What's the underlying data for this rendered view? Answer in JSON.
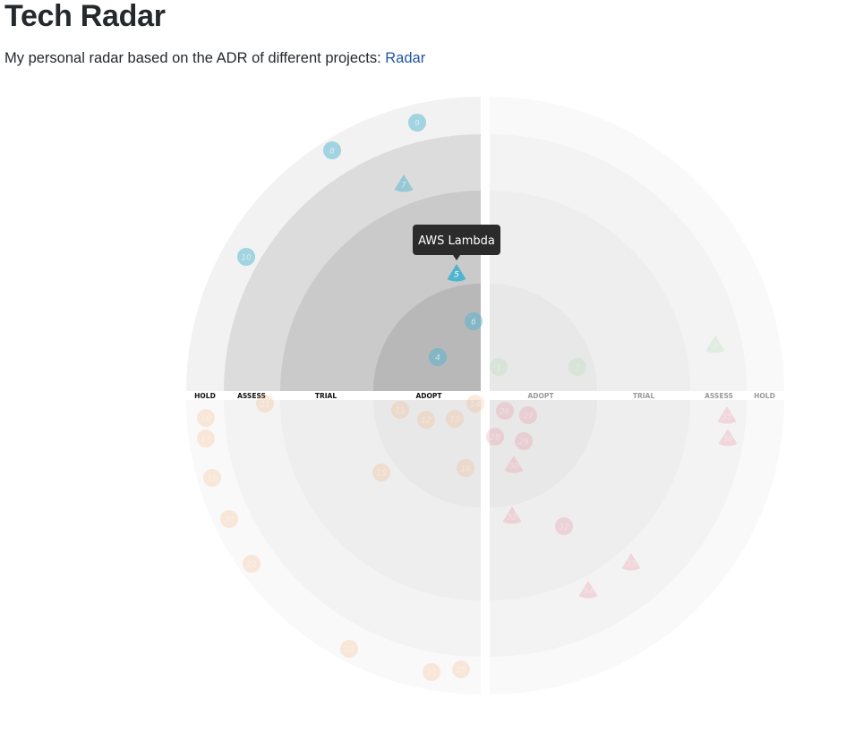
{
  "page": {
    "title": "Tech Radar",
    "intro": "My personal radar based on the ADR of different projects: ",
    "link_label": "Radar"
  },
  "chart_data": {
    "type": "radar",
    "rings": [
      "ADOPT",
      "TRIAL",
      "ASSESS",
      "HOLD"
    ],
    "quadrant_labels": {
      "left": [
        "HOLD",
        "ASSESS",
        "TRIAL",
        "ADOPT"
      ],
      "right": [
        "ADOPT",
        "TRIAL",
        "ASSESS",
        "HOLD"
      ]
    },
    "quadrants": [
      {
        "position": "top-left",
        "color": "#4fb4cf",
        "highlighted": true
      },
      {
        "position": "top-right",
        "color": "#9ed49e",
        "highlighted": false
      },
      {
        "position": "bottom-left",
        "color": "#f5a76a",
        "highlighted": false
      },
      {
        "position": "bottom-right",
        "color": "#e8748a",
        "highlighted": false
      }
    ],
    "tooltip": {
      "label": "AWS Lambda",
      "blip": "5"
    },
    "blips": [
      {
        "id": "4",
        "quadrant": "top-left",
        "ring": "ADOPT",
        "shape": "circle"
      },
      {
        "id": "5",
        "quadrant": "top-left",
        "ring": "TRIAL",
        "shape": "triangle",
        "active": true
      },
      {
        "id": "6",
        "quadrant": "top-left",
        "ring": "ADOPT",
        "shape": "circle"
      },
      {
        "id": "7",
        "quadrant": "top-left",
        "ring": "ASSESS",
        "shape": "triangle"
      },
      {
        "id": "8",
        "quadrant": "top-left",
        "ring": "HOLD",
        "shape": "circle"
      },
      {
        "id": "9",
        "quadrant": "top-left",
        "ring": "HOLD",
        "shape": "circle"
      },
      {
        "id": "10",
        "quadrant": "top-left",
        "ring": "HOLD",
        "shape": "circle"
      },
      {
        "id": "1",
        "quadrant": "top-right",
        "ring": "ADOPT",
        "shape": "circle"
      },
      {
        "id": "2",
        "quadrant": "top-right",
        "ring": "TRIAL",
        "shape": "circle"
      },
      {
        "id": "3",
        "quadrant": "top-right",
        "ring": "HOLD",
        "shape": "triangle"
      },
      {
        "id": "11",
        "quadrant": "bottom-left",
        "ring": "ADOPT",
        "shape": "circle"
      },
      {
        "id": "12",
        "quadrant": "bottom-left",
        "ring": "ADOPT",
        "shape": "circle"
      },
      {
        "id": "13",
        "quadrant": "bottom-left",
        "ring": "ADOPT",
        "shape": "circle"
      },
      {
        "id": "14",
        "quadrant": "bottom-left",
        "ring": "ADOPT",
        "shape": "circle"
      },
      {
        "id": "15",
        "quadrant": "bottom-left",
        "ring": "ADOPT",
        "shape": "circle"
      },
      {
        "id": "16",
        "quadrant": "bottom-left",
        "ring": "ADOPT",
        "shape": "circle"
      },
      {
        "id": "17",
        "quadrant": "bottom-left",
        "ring": "HOLD",
        "shape": "circle"
      },
      {
        "id": "18",
        "quadrant": "bottom-left",
        "ring": "HOLD",
        "shape": "circle"
      },
      {
        "id": "19",
        "quadrant": "bottom-left",
        "ring": "HOLD",
        "shape": "circle"
      },
      {
        "id": "20",
        "quadrant": "bottom-left",
        "ring": "HOLD",
        "shape": "circle"
      },
      {
        "id": "21",
        "quadrant": "bottom-left",
        "ring": "ASSESS",
        "shape": "circle"
      },
      {
        "id": "22",
        "quadrant": "bottom-left",
        "ring": "HOLD",
        "shape": "circle"
      },
      {
        "id": "23",
        "quadrant": "bottom-left",
        "ring": "HOLD",
        "shape": "circle"
      },
      {
        "id": "24",
        "quadrant": "bottom-left",
        "ring": "HOLD",
        "shape": "circle"
      },
      {
        "id": "25",
        "quadrant": "bottom-left",
        "ring": "HOLD",
        "shape": "circle"
      },
      {
        "id": "26",
        "quadrant": "bottom-right",
        "ring": "ADOPT",
        "shape": "circle"
      },
      {
        "id": "27",
        "quadrant": "bottom-right",
        "ring": "ADOPT",
        "shape": "circle"
      },
      {
        "id": "28",
        "quadrant": "bottom-right",
        "ring": "ADOPT",
        "shape": "circle"
      },
      {
        "id": "29",
        "quadrant": "bottom-right",
        "ring": "ADOPT",
        "shape": "circle"
      },
      {
        "id": "30",
        "quadrant": "bottom-right",
        "ring": "ADOPT",
        "shape": "triangle"
      },
      {
        "id": "31",
        "quadrant": "bottom-right",
        "ring": "TRIAL",
        "shape": "triangle"
      },
      {
        "id": "32",
        "quadrant": "bottom-right",
        "ring": "TRIAL",
        "shape": "circle"
      },
      {
        "id": "33",
        "quadrant": "bottom-right",
        "ring": "TRIAL",
        "shape": "triangle"
      },
      {
        "id": "34",
        "quadrant": "bottom-right",
        "ring": "ASSESS",
        "shape": "triangle"
      },
      {
        "id": "35",
        "quadrant": "bottom-right",
        "ring": "HOLD",
        "shape": "triangle"
      },
      {
        "id": "36",
        "quadrant": "bottom-right",
        "ring": "HOLD",
        "shape": "triangle"
      }
    ]
  }
}
